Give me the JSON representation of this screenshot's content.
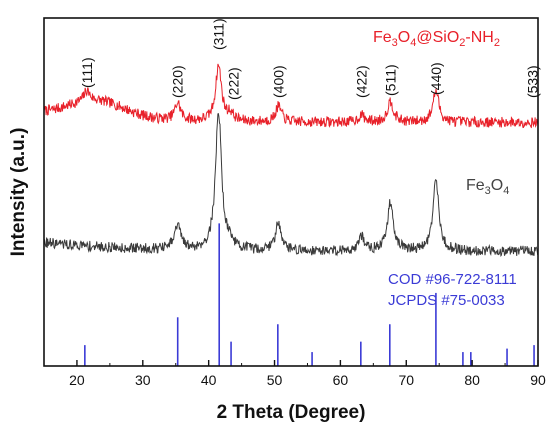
{
  "chart_data": {
    "type": "line",
    "xlabel": "2 Theta (Degree)",
    "ylabel": "Intensity (a.u.)",
    "xlim": [
      15,
      90
    ],
    "x_ticks": [
      "20",
      "30",
      "40",
      "50",
      "60",
      "70",
      "80",
      "90"
    ],
    "grid": false,
    "series": [
      {
        "name": "Fe3O4@SiO2-NH2",
        "label_parts": [
          "Fe",
          "3",
          "O",
          "4",
          "@SiO",
          "2",
          "-NH",
          "2"
        ],
        "color": "#e8212a",
        "baseline": 0.7,
        "amorphous_hump": {
          "center": 23,
          "width": 6,
          "height": 0.05
        },
        "peaks": [
          {
            "x": 21.5,
            "h": 0.03
          },
          {
            "x": 35.3,
            "h": 0.05
          },
          {
            "x": 41.5,
            "h": 0.16
          },
          {
            "x": 43.3,
            "h": 0.02
          },
          {
            "x": 50.6,
            "h": 0.045
          },
          {
            "x": 63.2,
            "h": 0.02
          },
          {
            "x": 67.6,
            "h": 0.06
          },
          {
            "x": 74.5,
            "h": 0.09
          }
        ]
      },
      {
        "name": "Fe3O4",
        "label_parts": [
          "Fe",
          "3",
          "O",
          "4"
        ],
        "color": "#3a3a3a",
        "baseline": 0.33,
        "peaks": [
          {
            "x": 35.3,
            "h": 0.07
          },
          {
            "x": 41.5,
            "h": 0.4
          },
          {
            "x": 43.3,
            "h": 0.02
          },
          {
            "x": 50.6,
            "h": 0.08
          },
          {
            "x": 63.2,
            "h": 0.04
          },
          {
            "x": 67.6,
            "h": 0.14
          },
          {
            "x": 74.5,
            "h": 0.2
          }
        ]
      }
    ],
    "reference": {
      "label_lines": [
        "COD #96-722-8111",
        "JCPDS #75-0033"
      ],
      "color": "#3b3bd6",
      "sticks": [
        {
          "x": 21.2,
          "h": 0.06
        },
        {
          "x": 35.3,
          "h": 0.14
        },
        {
          "x": 41.6,
          "h": 0.41
        },
        {
          "x": 43.4,
          "h": 0.07
        },
        {
          "x": 50.5,
          "h": 0.12
        },
        {
          "x": 55.7,
          "h": 0.04
        },
        {
          "x": 63.1,
          "h": 0.07
        },
        {
          "x": 67.5,
          "h": 0.12
        },
        {
          "x": 74.5,
          "h": 0.21
        },
        {
          "x": 78.6,
          "h": 0.04
        },
        {
          "x": 79.8,
          "h": 0.04
        },
        {
          "x": 85.3,
          "h": 0.05
        },
        {
          "x": 89.4,
          "h": 0.06
        }
      ]
    },
    "hkl_labels": [
      {
        "text": "(111)",
        "x": 21.5
      },
      {
        "text": "(220)",
        "x": 35.3
      },
      {
        "text": "(311)",
        "x": 41.5
      },
      {
        "text": "(222)",
        "x": 43.8
      },
      {
        "text": "(400)",
        "x": 50.6
      },
      {
        "text": "(422)",
        "x": 63.2
      },
      {
        "text": "(511)",
        "x": 67.6
      },
      {
        "text": "(440)",
        "x": 74.5
      },
      {
        "text": "(533)",
        "x": 89.2
      }
    ]
  }
}
